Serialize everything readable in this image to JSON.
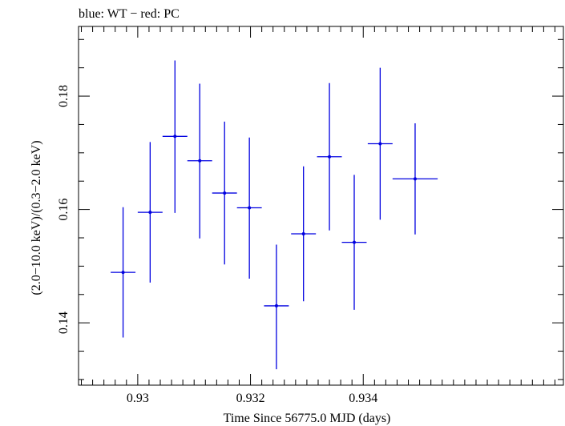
{
  "chart_data": {
    "type": "scatter",
    "title": "blue: WT − red: PC",
    "xlabel": "Time Since 56775.0 MJD (days)",
    "ylabel": "(2.0−10.0 keV)/(0.3−2.0 keV)",
    "xlim": [
      0.92895,
      0.93755
    ],
    "ylim": [
      0.129,
      0.1923
    ],
    "x_major_ticks": [
      0.93,
      0.932,
      0.934
    ],
    "x_tick_labels": [
      "0.93",
      "0.932",
      "0.934"
    ],
    "x_minor_step": 0.0002,
    "y_major_ticks": [
      0.14,
      0.16,
      0.18
    ],
    "y_tick_labels": [
      "0.14",
      "0.16",
      "0.18"
    ],
    "y_minor_step": 0.005,
    "grid": false,
    "series": [
      {
        "color": "#0000e0",
        "points": [
          {
            "x": 0.92974,
            "xerr": 0.00022,
            "y": 0.1489,
            "ylo": 0.1374,
            "yhi": 0.1604
          },
          {
            "x": 0.93022,
            "xerr": 0.00022,
            "y": 0.1595,
            "ylo": 0.1471,
            "yhi": 0.1719
          },
          {
            "x": 0.93066,
            "xerr": 0.00022,
            "y": 0.1729,
            "ylo": 0.1594,
            "yhi": 0.1863
          },
          {
            "x": 0.9311,
            "xerr": 0.00022,
            "y": 0.1686,
            "ylo": 0.1549,
            "yhi": 0.1822
          },
          {
            "x": 0.93154,
            "xerr": 0.00022,
            "y": 0.1629,
            "ylo": 0.1503,
            "yhi": 0.1755
          },
          {
            "x": 0.93198,
            "xerr": 0.00022,
            "y": 0.1603,
            "ylo": 0.1478,
            "yhi": 0.1727
          },
          {
            "x": 0.93246,
            "xerr": 0.00022,
            "y": 0.143,
            "ylo": 0.1318,
            "yhi": 0.1538
          },
          {
            "x": 0.93294,
            "xerr": 0.00022,
            "y": 0.1557,
            "ylo": 0.1438,
            "yhi": 0.1676
          },
          {
            "x": 0.9334,
            "xerr": 0.00022,
            "y": 0.1693,
            "ylo": 0.1563,
            "yhi": 0.1823
          },
          {
            "x": 0.93384,
            "xerr": 0.00022,
            "y": 0.1542,
            "ylo": 0.1423,
            "yhi": 0.1661
          },
          {
            "x": 0.9343,
            "xerr": 0.00022,
            "y": 0.1716,
            "ylo": 0.1582,
            "yhi": 0.185
          },
          {
            "x": 0.93492,
            "xerr": 0.0004,
            "y": 0.1654,
            "ylo": 0.1556,
            "yhi": 0.1752
          }
        ]
      }
    ]
  }
}
